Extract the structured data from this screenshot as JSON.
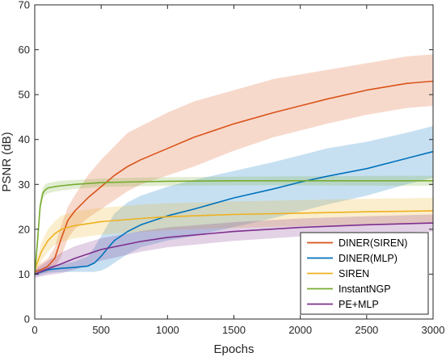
{
  "chart_data": {
    "type": "line",
    "xlabel": "Epochs",
    "ylabel": "PSNR (dB)",
    "xlim": [
      0,
      3000
    ],
    "ylim": [
      0,
      70
    ],
    "xticks": [
      0,
      500,
      1000,
      1500,
      2000,
      2500,
      3000
    ],
    "yticks": [
      0,
      10,
      20,
      30,
      40,
      50,
      60,
      70
    ],
    "grid": false,
    "legend_position": "bottom-right",
    "series": [
      {
        "name": "DINER(SIREN)",
        "color": "#d95319",
        "x": [
          0,
          50,
          100,
          150,
          200,
          250,
          300,
          400,
          500,
          600,
          700,
          800,
          1000,
          1200,
          1500,
          1800,
          2000,
          2200,
          2500,
          2800,
          3000
        ],
        "y": [
          10.5,
          11.0,
          11.8,
          13.5,
          18.0,
          22.0,
          24.0,
          27.0,
          29.5,
          32.0,
          34.0,
          35.5,
          38.0,
          40.5,
          43.5,
          46.0,
          47.5,
          49.0,
          51.0,
          52.5,
          53.0
        ],
        "upper": [
          11.5,
          12.5,
          13.5,
          16.0,
          21.0,
          25.0,
          27.5,
          32.0,
          35.5,
          38.5,
          41.5,
          43.0,
          46.0,
          48.5,
          51.0,
          53.5,
          54.5,
          55.5,
          57.0,
          58.5,
          59.0
        ],
        "lower": [
          9.8,
          10.2,
          10.5,
          11.5,
          14.0,
          18.0,
          20.0,
          22.5,
          24.5,
          26.5,
          28.5,
          30.0,
          32.0,
          34.0,
          37.5,
          40.5,
          42.0,
          43.5,
          45.5,
          47.0,
          47.5
        ]
      },
      {
        "name": "DINER(MLP)",
        "color": "#0072bd",
        "x": [
          0,
          100,
          200,
          300,
          400,
          450,
          500,
          550,
          600,
          700,
          800,
          1000,
          1200,
          1500,
          1800,
          2000,
          2200,
          2500,
          2800,
          3000
        ],
        "y": [
          10.0,
          11.0,
          11.3,
          11.5,
          11.8,
          12.5,
          14.0,
          15.8,
          17.5,
          19.5,
          21.0,
          23.0,
          24.5,
          27.0,
          29.0,
          30.5,
          31.8,
          33.5,
          35.8,
          37.3
        ],
        "upper": [
          10.8,
          11.8,
          12.2,
          12.8,
          14.0,
          16.0,
          18.5,
          21.0,
          23.5,
          26.0,
          27.5,
          29.5,
          31.0,
          33.0,
          35.0,
          36.5,
          38.0,
          39.5,
          41.5,
          43.0
        ],
        "lower": [
          9.5,
          10.3,
          10.5,
          10.5,
          10.5,
          10.5,
          10.8,
          11.5,
          12.5,
          14.5,
          16.0,
          17.5,
          18.5,
          20.5,
          22.5,
          24.0,
          25.5,
          27.5,
          30.0,
          31.5
        ]
      },
      {
        "name": "SIREN",
        "color": "#edb120",
        "x": [
          0,
          50,
          100,
          150,
          200,
          300,
          500,
          800,
          1000,
          1500,
          2000,
          2500,
          3000
        ],
        "y": [
          11.0,
          15.0,
          17.5,
          19.0,
          20.0,
          20.8,
          21.7,
          22.4,
          22.8,
          23.3,
          23.6,
          23.9,
          24.1
        ],
        "upper": [
          12.0,
          17.0,
          20.0,
          21.8,
          23.0,
          24.0,
          24.8,
          25.5,
          25.8,
          26.2,
          26.5,
          26.8,
          27.0
        ],
        "lower": [
          10.0,
          13.0,
          15.0,
          16.5,
          17.2,
          18.0,
          18.8,
          19.4,
          19.8,
          20.3,
          20.7,
          21.0,
          21.3
        ]
      },
      {
        "name": "InstantNGP",
        "color": "#77ac30",
        "x": [
          0,
          20,
          40,
          60,
          80,
          100,
          150,
          200,
          300,
          500,
          800,
          1000,
          1500,
          2000,
          2500,
          3000
        ],
        "y": [
          10.0,
          17.0,
          25.0,
          28.0,
          28.8,
          29.2,
          29.5,
          29.7,
          30.0,
          30.4,
          30.6,
          30.7,
          30.8,
          30.8,
          30.8,
          30.8
        ],
        "upper": [
          11.0,
          18.5,
          26.5,
          29.2,
          30.0,
          30.3,
          30.6,
          30.8,
          31.0,
          31.3,
          31.5,
          31.6,
          31.7,
          31.8,
          31.9,
          31.9
        ],
        "lower": [
          9.3,
          15.5,
          23.5,
          26.8,
          27.6,
          28.0,
          28.4,
          28.6,
          29.0,
          29.4,
          29.6,
          29.7,
          29.8,
          29.8,
          29.7,
          29.7
        ]
      },
      {
        "name": "PE+MLP",
        "color": "#7e2f8e",
        "x": [
          0,
          100,
          200,
          300,
          500,
          800,
          1000,
          1500,
          2000,
          2500,
          3000
        ],
        "y": [
          10.0,
          11.2,
          12.3,
          13.5,
          15.5,
          17.3,
          18.2,
          19.5,
          20.4,
          21.0,
          21.4
        ],
        "upper": [
          11.0,
          13.0,
          14.8,
          16.2,
          18.0,
          19.6,
          20.4,
          21.6,
          22.4,
          22.9,
          23.3
        ],
        "lower": [
          9.2,
          9.8,
          10.2,
          11.0,
          13.0,
          15.0,
          16.0,
          17.4,
          18.4,
          19.0,
          19.5
        ]
      }
    ]
  }
}
